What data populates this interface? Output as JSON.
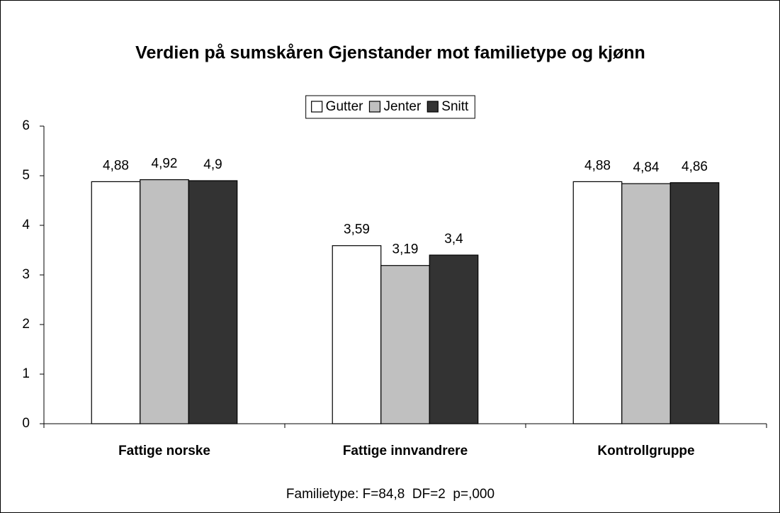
{
  "chart_data": {
    "type": "bar",
    "title": "Verdien på sumskåren Gjenstander mot familietype og kjønn",
    "categories": [
      "Fattige norske",
      "Fattige innvandrere",
      "Kontrollgruppe"
    ],
    "series": [
      {
        "name": "Gutter",
        "color": "#ffffff",
        "values": [
          4.88,
          3.59,
          4.88
        ],
        "value_labels": [
          "4,88",
          "3,59",
          "4,88"
        ]
      },
      {
        "name": "Jenter",
        "color": "#c0c0c0",
        "values": [
          4.92,
          3.19,
          4.84
        ],
        "value_labels": [
          "4,92",
          "3,19",
          "4,84"
        ]
      },
      {
        "name": "Snitt",
        "color": "#333333",
        "values": [
          4.9,
          3.4,
          4.86
        ],
        "value_labels": [
          "4,9",
          "3,4",
          "4,86"
        ]
      }
    ],
    "ylim": [
      0,
      6
    ],
    "yticks": [
      0,
      1,
      2,
      3,
      4,
      5,
      6
    ],
    "legend": "top",
    "footnote": "Familietype: F=84,8  DF=2  p=,000"
  }
}
